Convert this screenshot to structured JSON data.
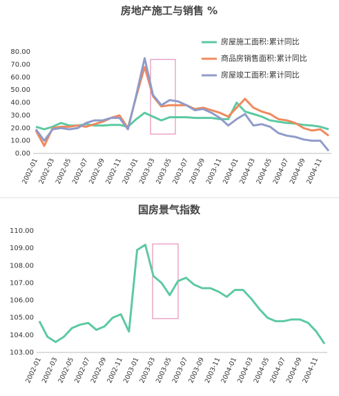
{
  "chart_data": [
    {
      "type": "line",
      "title": "房地产施工与销售 %",
      "categories": [
        "2002-01",
        null,
        "2002-03",
        null,
        "2002-05",
        null,
        "2002-07",
        null,
        "2002-09",
        null,
        "2002-11",
        null,
        "2003-01",
        null,
        "2003-03",
        null,
        "2003-05",
        null,
        "2003-07",
        null,
        "2003-09",
        null,
        "2003-11",
        null,
        "2004-01",
        null,
        "2004-03",
        null,
        "2004-05",
        null,
        "2004-07",
        null,
        "2004-09",
        null,
        "2004-11",
        null
      ],
      "series": [
        {
          "name": "房屋施工面积:累计同比",
          "color": "#5cc9a1",
          "values": [
            21,
            19,
            21,
            24,
            22,
            22,
            23,
            22,
            22,
            22.5,
            22.5,
            21,
            27,
            32,
            29,
            26,
            28.5,
            28.5,
            28.5,
            28,
            28,
            28,
            27,
            27,
            40,
            33,
            31,
            29,
            26,
            25,
            24,
            23.5,
            22.5,
            22,
            21,
            19
          ]
        },
        {
          "name": "商品房销售面积:累计同比",
          "color": "#f0895c",
          "values": [
            18,
            6,
            20,
            21,
            21,
            22,
            21,
            23,
            25,
            28,
            30,
            20,
            45,
            68,
            45,
            37,
            38,
            38,
            38,
            35,
            36,
            34,
            32,
            29,
            36,
            43,
            36,
            33,
            31,
            27,
            26,
            24,
            20,
            18,
            19,
            14
          ]
        },
        {
          "name": "房屋竣工面积:累计同比",
          "color": "#8f9bc9",
          "values": [
            19,
            10,
            19,
            20,
            19,
            20,
            24,
            26,
            26,
            28,
            28,
            19,
            46,
            75,
            46,
            38,
            42,
            41,
            38,
            34,
            35,
            32,
            28,
            22,
            27,
            31,
            22,
            23,
            21,
            16,
            14,
            13,
            11,
            10,
            10,
            2
          ]
        }
      ],
      "ylim": [
        0,
        80
      ],
      "yticks": [
        {
          "value": 0,
          "label": "0.00"
        },
        {
          "value": 10,
          "label": "10.00"
        },
        {
          "value": 20,
          "label": "20.00"
        },
        {
          "value": 30,
          "label": "30.00"
        },
        {
          "value": 40,
          "label": "40.00"
        },
        {
          "value": 50,
          "label": "50.00"
        },
        {
          "value": 60,
          "label": "60.00"
        },
        {
          "value": 70,
          "label": "70.00"
        },
        {
          "value": 80,
          "label": "80.00"
        }
      ],
      "grid": false,
      "legend": "upper right"
    },
    {
      "type": "line",
      "title": "国房景气指数",
      "categories": [
        "2002-01",
        null,
        "2002-03",
        null,
        "2002-05",
        null,
        "2002-07",
        null,
        "2002-09",
        null,
        "2002-11",
        null,
        "2003-01",
        null,
        "2003-03",
        null,
        "2003-05",
        null,
        "2003-07",
        null,
        "2003-09",
        null,
        "2003-11",
        null,
        "2004-01",
        null,
        "2004-03",
        null,
        "2004-05",
        null,
        "2004-07",
        null,
        "2004-09",
        null,
        "2004-11",
        null
      ],
      "color": "#5cc9a1",
      "values": [
        104.8,
        103.9,
        103.6,
        103.9,
        104.4,
        104.6,
        104.7,
        104.3,
        104.5,
        105.0,
        105.2,
        104.2,
        108.9,
        109.2,
        107.4,
        107.0,
        106.3,
        107.1,
        107.3,
        106.9,
        106.7,
        106.7,
        106.5,
        106.2,
        106.6,
        106.6,
        106.1,
        105.5,
        105.0,
        104.8,
        104.8,
        104.9,
        104.9,
        104.7,
        104.2,
        103.5
      ],
      "ylim": [
        103,
        110
      ],
      "yticks": [
        {
          "value": 103,
          "label": "103.00"
        },
        {
          "value": 104,
          "label": "104.00"
        },
        {
          "value": 105,
          "label": "105.00"
        },
        {
          "value": 106,
          "label": "106.00"
        },
        {
          "value": 107,
          "label": "107.00"
        },
        {
          "value": 108,
          "label": "108.00"
        },
        {
          "value": 109,
          "label": "109.00"
        },
        {
          "value": 110,
          "label": "110.00"
        }
      ],
      "grid": false
    }
  ]
}
